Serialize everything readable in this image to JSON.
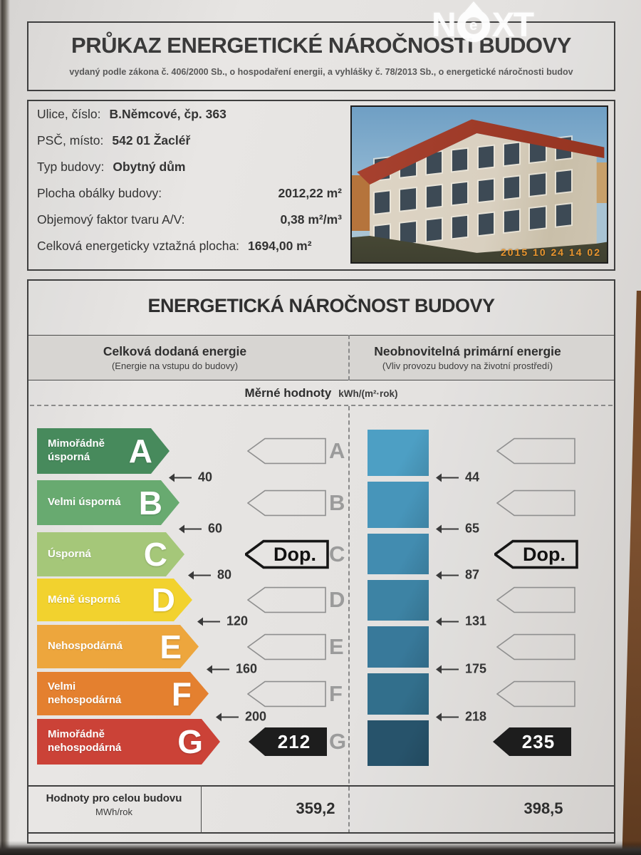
{
  "logo": {
    "prefix": "N",
    "circle_letter": "e",
    "suffix": "XT"
  },
  "header": {
    "title": "PRŮKAZ ENERGETICKÉ NÁROČNOSTI BUDOVY",
    "subtitle": "vydaný podle zákona č. 406/2000 Sb., o hospodaření energii, a vyhlášky č. 78/2013 Sb., o energetické náročnosti budov"
  },
  "building": {
    "fields": [
      {
        "label": "Ulice, číslo:",
        "value": "B.Němcové, čp. 363"
      },
      {
        "label": "PSČ, místo:",
        "value": "542 01 Žacléř"
      },
      {
        "label": "Typ budovy:",
        "value": "Obytný dům"
      },
      {
        "label": "Plocha obálky budovy:",
        "value": "2012,22 m²"
      },
      {
        "label": "Objemový faktor tvaru A/V:",
        "value": "0,38 m²/m³"
      },
      {
        "label": "Celková energeticky vztažná plocha:",
        "value": "1694,00 m²"
      }
    ],
    "photo_timestamp": "2015 10 24 14 02"
  },
  "section": {
    "title": "ENERGETICKÁ NÁROČNOST BUDOVY",
    "columns": [
      {
        "title": "Celková dodaná energie",
        "subtitle": "(Energie na vstupu do budovy)"
      },
      {
        "title": "Neobnovitelná primární energie",
        "subtitle": "(Vliv provozu budovy na životní prostředí)"
      }
    ],
    "units_label": "Měrné hodnoty",
    "units": "kWh/(m²·rok)"
  },
  "chart_data": {
    "type": "energy-rating-scale",
    "grades": [
      {
        "grade": "A",
        "label": "Mimořádně úsporná",
        "color": "#478a5c",
        "upper_threshold": 40
      },
      {
        "grade": "B",
        "label": "Velmi úsporná",
        "color": "#68aa70",
        "upper_threshold": 60
      },
      {
        "grade": "C",
        "label": "Úsporná",
        "color": "#a5c779",
        "upper_threshold": 80
      },
      {
        "grade": "D",
        "label": "Méně úsporná",
        "color": "#f2d22e",
        "upper_threshold": 120
      },
      {
        "grade": "E",
        "label": "Nehospodárná",
        "color": "#eda63d",
        "upper_threshold": 160
      },
      {
        "grade": "F",
        "label": "Velmi nehospodárná",
        "color": "#e4802f",
        "upper_threshold": 200
      },
      {
        "grade": "G",
        "label": "Mimořádně nehospodárná",
        "color": "#cb4237",
        "upper_threshold": null
      }
    ],
    "delivered_energy": {
      "value": "212",
      "grade": "G",
      "recommended_grade": "C",
      "recommendation_label": "Dop."
    },
    "primary_energy": {
      "value": "235",
      "grade": "G",
      "recommended_grade": "C",
      "recommendation_label": "Dop.",
      "thresholds": [
        44,
        65,
        87,
        131,
        175,
        218
      ],
      "segment_colors": [
        "#4d9fc4",
        "#4795ba",
        "#428cb0",
        "#3d83a4",
        "#38799a",
        "#326f8c",
        "#27536b"
      ]
    }
  },
  "footer": {
    "label": "Hodnoty pro celou budovu",
    "unit": "MWh/rok",
    "delivered_value": "359,2",
    "primary_value": "398,5"
  }
}
